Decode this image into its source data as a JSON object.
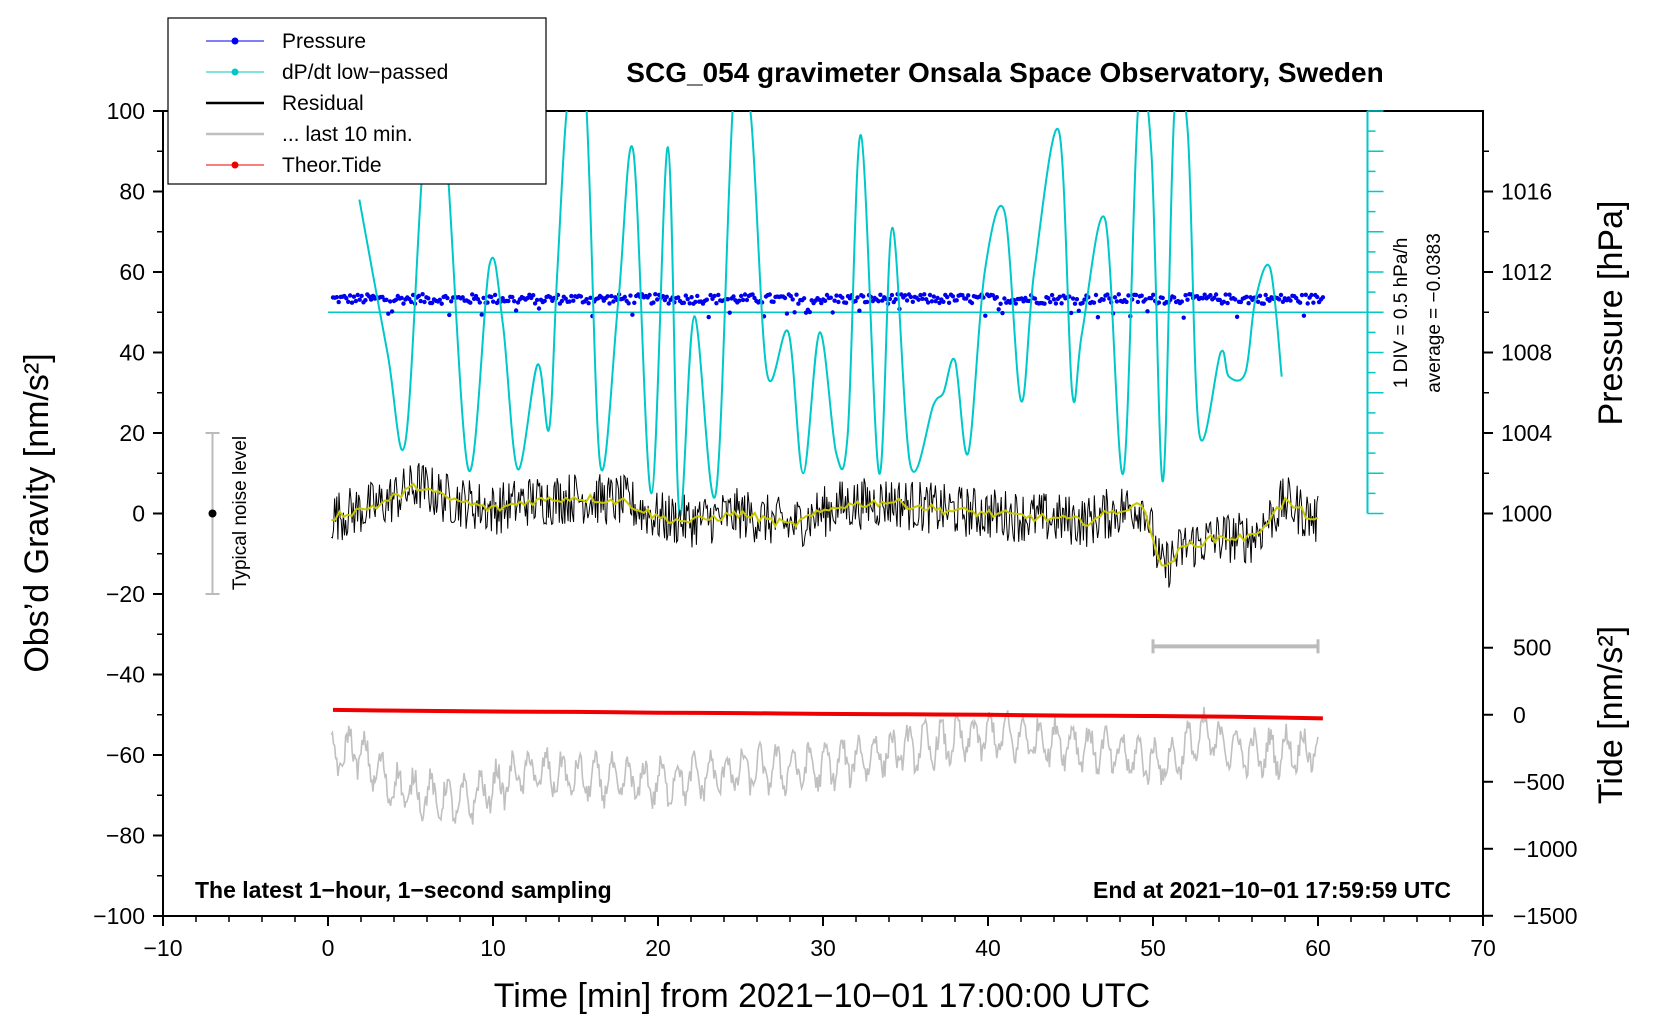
{
  "chart_data": {
    "type": "line",
    "title": "SCG_054 gravimeter Onsala Space Observatory, Sweden",
    "xlabel": "Time [min] from 2021−10−01 17:00:00 UTC",
    "ylabel_left": "Obs’d Gravity [nm/s²]",
    "ylabel_right_top": "Pressure [hPa]",
    "ylabel_right_bottom": "Tide [nm/s²]",
    "xlim": [
      -10,
      70
    ],
    "ylim": [
      -100,
      100
    ],
    "x_ticks": [
      "−10",
      "0",
      "10",
      "20",
      "30",
      "40",
      "50",
      "60",
      "70"
    ],
    "x_tick_values": [
      -10,
      0,
      10,
      20,
      30,
      40,
      50,
      60,
      70
    ],
    "y_ticks": [
      "100",
      "80",
      "60",
      "40",
      "20",
      "0",
      "−20",
      "−40",
      "−60",
      "−80",
      "−100"
    ],
    "y_tick_values": [
      100,
      80,
      60,
      40,
      20,
      0,
      -20,
      -40,
      -60,
      -80,
      -100
    ],
    "pressure_ticks": [
      "1016",
      "1012",
      "1008",
      "1004",
      "1000"
    ],
    "pressure_tick_values": [
      1016,
      1012,
      1008,
      1004,
      1000
    ],
    "pressure_axis": {
      "ref_gravity": 50,
      "ref_hpa": 1010,
      "gravity_per_hpa": 5
    },
    "tide_ticks": [
      "500",
      "0",
      "−500",
      "−1000",
      "−1500"
    ],
    "tide_tick_values": [
      500,
      0,
      -500,
      -1000,
      -1500
    ],
    "tide_axis": {
      "ref_gravity": -50,
      "ref_tide": 0,
      "gravity_per_tide": 0.0333
    },
    "legend": [
      {
        "label": "Pressure",
        "color": "#0000ee",
        "marker": "dot"
      },
      {
        "label": "dP/dt low−passed",
        "color": "#00c8c8",
        "marker": "dot"
      },
      {
        "label": "Residual",
        "color": "#000000",
        "marker": "line"
      },
      {
        "label": "... last 10 min.",
        "color": "#c0c0c0",
        "marker": "line"
      },
      {
        "label": "Theor.Tide",
        "color": "#ee0000",
        "marker": "dot"
      }
    ],
    "annotations": {
      "bottom_left": "The latest 1−hour, 1−second sampling",
      "bottom_right": "End at 2021−10−01 17:59:59 UTC",
      "noise_label": "Typical noise level",
      "dpdt_scale": "1 DIV = 0.5 hPa/h",
      "dpdt_average": "average = −0.0383"
    },
    "noise_bar": {
      "x": -7,
      "center": 0,
      "low": -20,
      "high": 20
    },
    "last10_bar": {
      "x_start": 50,
      "x_end": 60,
      "y": -33
    },
    "dpdt_scale_bar": {
      "x": 63,
      "y_bottom": 0,
      "y_top": 100,
      "baseline": 50
    },
    "series": [
      {
        "name": "Pressure",
        "color": "#0000ee",
        "kind": "dots",
        "x_start": 0.3,
        "x_end": 60.3,
        "level": 53.3,
        "noise": 1.2
      },
      {
        "name": "dP/dt low−passed",
        "color": "#00c8c8",
        "kind": "line",
        "x": [
          1.9,
          3.6,
          4.7,
          5.9,
          7.0,
          8.5,
          9.8,
          10.6,
          11.5,
          12.7,
          13.4,
          13.9,
          14.6,
          15.6,
          16.5,
          17.6,
          18.5,
          19.6,
          20.6,
          21.3,
          22.2,
          23.5,
          24.6,
          25.6,
          26.6,
          27.9,
          28.8,
          29.8,
          30.8,
          31.5,
          32.3,
          33.4,
          34.2,
          35.3,
          36.7,
          37.3,
          38.0,
          38.8,
          39.8,
          41.0,
          42.0,
          42.8,
          44.3,
          45.1,
          45.7,
          47.1,
          48.2,
          49.1,
          49.9,
          50.6,
          51.3,
          52.1,
          52.8,
          54.1,
          54.6,
          55.6,
          56.2,
          57.1,
          57.8
        ],
        "y": [
          78,
          40,
          18,
          95,
          98,
          11,
          62,
          47,
          11,
          37,
          21,
          60,
          105,
          105,
          12,
          53,
          90,
          5,
          91,
          0,
          49,
          5,
          105,
          100,
          35,
          45,
          10,
          45,
          15,
          20,
          94,
          10,
          71,
          12,
          27,
          30,
          38,
          15,
          60,
          75,
          28,
          60,
          95,
          30,
          45,
          73,
          10,
          101,
          90,
          8,
          100,
          95,
          20,
          40,
          34,
          35,
          53,
          61,
          34
        ]
      },
      {
        "name": "Residual",
        "color": "#000000",
        "kind": "noise",
        "x_start": 0.2,
        "x_end": 60.0,
        "noise": 6.5,
        "trend_x": [
          0,
          3,
          5.5,
          7,
          10,
          12,
          15,
          18,
          20,
          22,
          25,
          28,
          31,
          34,
          37,
          40,
          43,
          46,
          48,
          49.5,
          50.5,
          52,
          54,
          56,
          58,
          60
        ],
        "trend_y": [
          -1,
          2,
          7,
          4,
          1,
          3,
          4,
          3,
          -1,
          -2,
          0,
          -3,
          2,
          3,
          1,
          0,
          -1,
          -2,
          1,
          2,
          -14,
          -8,
          -6,
          -6,
          3,
          -2
        ]
      },
      {
        "name": "... last 10 min.",
        "color": "#c0c0c0",
        "kind": "noise",
        "x_start": 0.2,
        "x_end": 60.0,
        "noise": 5.5,
        "trend_x": [
          0,
          1.5,
          4,
          8,
          12,
          16,
          20,
          25,
          30,
          33,
          36,
          40,
          45,
          48,
          51,
          53,
          56,
          60
        ],
        "trend_y": [
          -62,
          -58,
          -68,
          -72,
          -64,
          -66,
          -67,
          -64,
          -63,
          -60,
          -58,
          -55,
          -57,
          -60,
          -62,
          -55,
          -60,
          -58
        ]
      },
      {
        "name": "Theor.Tide",
        "color": "#ee0000",
        "kind": "line",
        "x": [
          0.3,
          5,
          10,
          15,
          20,
          25,
          30,
          35,
          40,
          45,
          50,
          55,
          60.3
        ],
        "y": [
          -48.8,
          -49.0,
          -49.2,
          -49.3,
          -49.5,
          -49.6,
          -49.8,
          -49.9,
          -50.0,
          -50.2,
          -50.3,
          -50.5,
          -50.9
        ]
      }
    ]
  }
}
